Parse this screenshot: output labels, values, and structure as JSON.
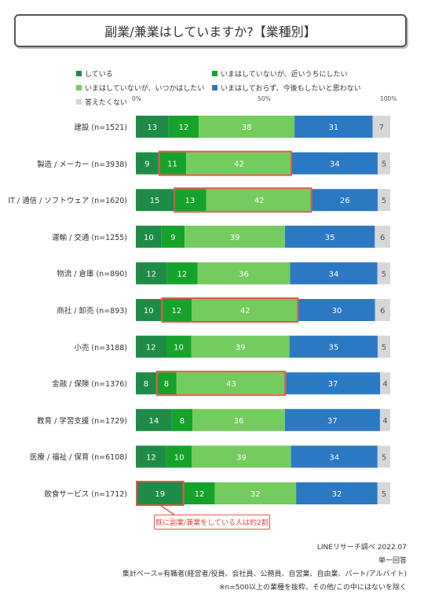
{
  "title": "副業/兼業はしていますか?【業種別】",
  "colors": {
    "doing": "#1e8c46",
    "soon": "#16a32b",
    "someday": "#74cc5e",
    "never": "#2b79c2",
    "na": "#d7d7d7",
    "highlight": "#e0584b"
  },
  "axis_ticks": [
    "0%",
    "50%",
    "100%"
  ],
  "callout": "既に副業/兼業をしている人は約2割",
  "notes": [
    "LINEリサーチ調べ 2022.07",
    "単一回答",
    "集計ベース=有職者(経営者/役員、会社員、公務員、自営業、自由業、パート/アルバイト)",
    "※n=500以上の業種を抜粋、その他/この中にはないを除く"
  ],
  "chart_data": {
    "type": "bar",
    "orientation": "horizontal",
    "stacked": true,
    "percent": true,
    "title": "副業/兼業はしていますか?【業種別】",
    "xlim": [
      0,
      100
    ],
    "legend_position": "top",
    "categories": [
      "建設 (n=1521)",
      "製造 / メーカー (n=3938)",
      "IT / 通信 / ソフトウェア (n=1620)",
      "運輸 / 交通 (n=1255)",
      "物流 / 倉庫 (n=890)",
      "商社 / 卸売 (n=893)",
      "小売 (n=3188)",
      "金融 / 保険 (n=1376)",
      "教育 / 学習支援 (n=1729)",
      "医療 / 福祉 / 保育 (n=6108)",
      "飲食サービス (n=1712)"
    ],
    "series": [
      {
        "name": "している",
        "values": [
          13,
          9,
          15,
          10,
          12,
          10,
          12,
          8,
          14,
          12,
          19
        ]
      },
      {
        "name": "いまはしていないが、近いうちにしたい",
        "values": [
          12,
          11,
          13,
          9,
          12,
          12,
          10,
          8,
          8,
          10,
          12
        ]
      },
      {
        "name": "いまはしていないが、いつかはしたい",
        "values": [
          38,
          42,
          42,
          39,
          36,
          42,
          39,
          43,
          36,
          39,
          32
        ]
      },
      {
        "name": "いまはしておらず、今後もしたいと思わない",
        "values": [
          31,
          34,
          26,
          35,
          34,
          30,
          35,
          37,
          37,
          34,
          32
        ]
      },
      {
        "name": "答えたくない",
        "values": [
          7,
          5,
          5,
          6,
          5,
          6,
          5,
          4,
          4,
          5,
          5
        ]
      }
    ],
    "highlights": [
      {
        "category_index": 1,
        "series_from": 1,
        "series_to": 2
      },
      {
        "category_index": 2,
        "series_from": 1,
        "series_to": 2
      },
      {
        "category_index": 5,
        "series_from": 1,
        "series_to": 2
      },
      {
        "category_index": 7,
        "series_from": 1,
        "series_to": 2
      },
      {
        "category_index": 10,
        "series_from": 0,
        "series_to": 0
      }
    ]
  }
}
